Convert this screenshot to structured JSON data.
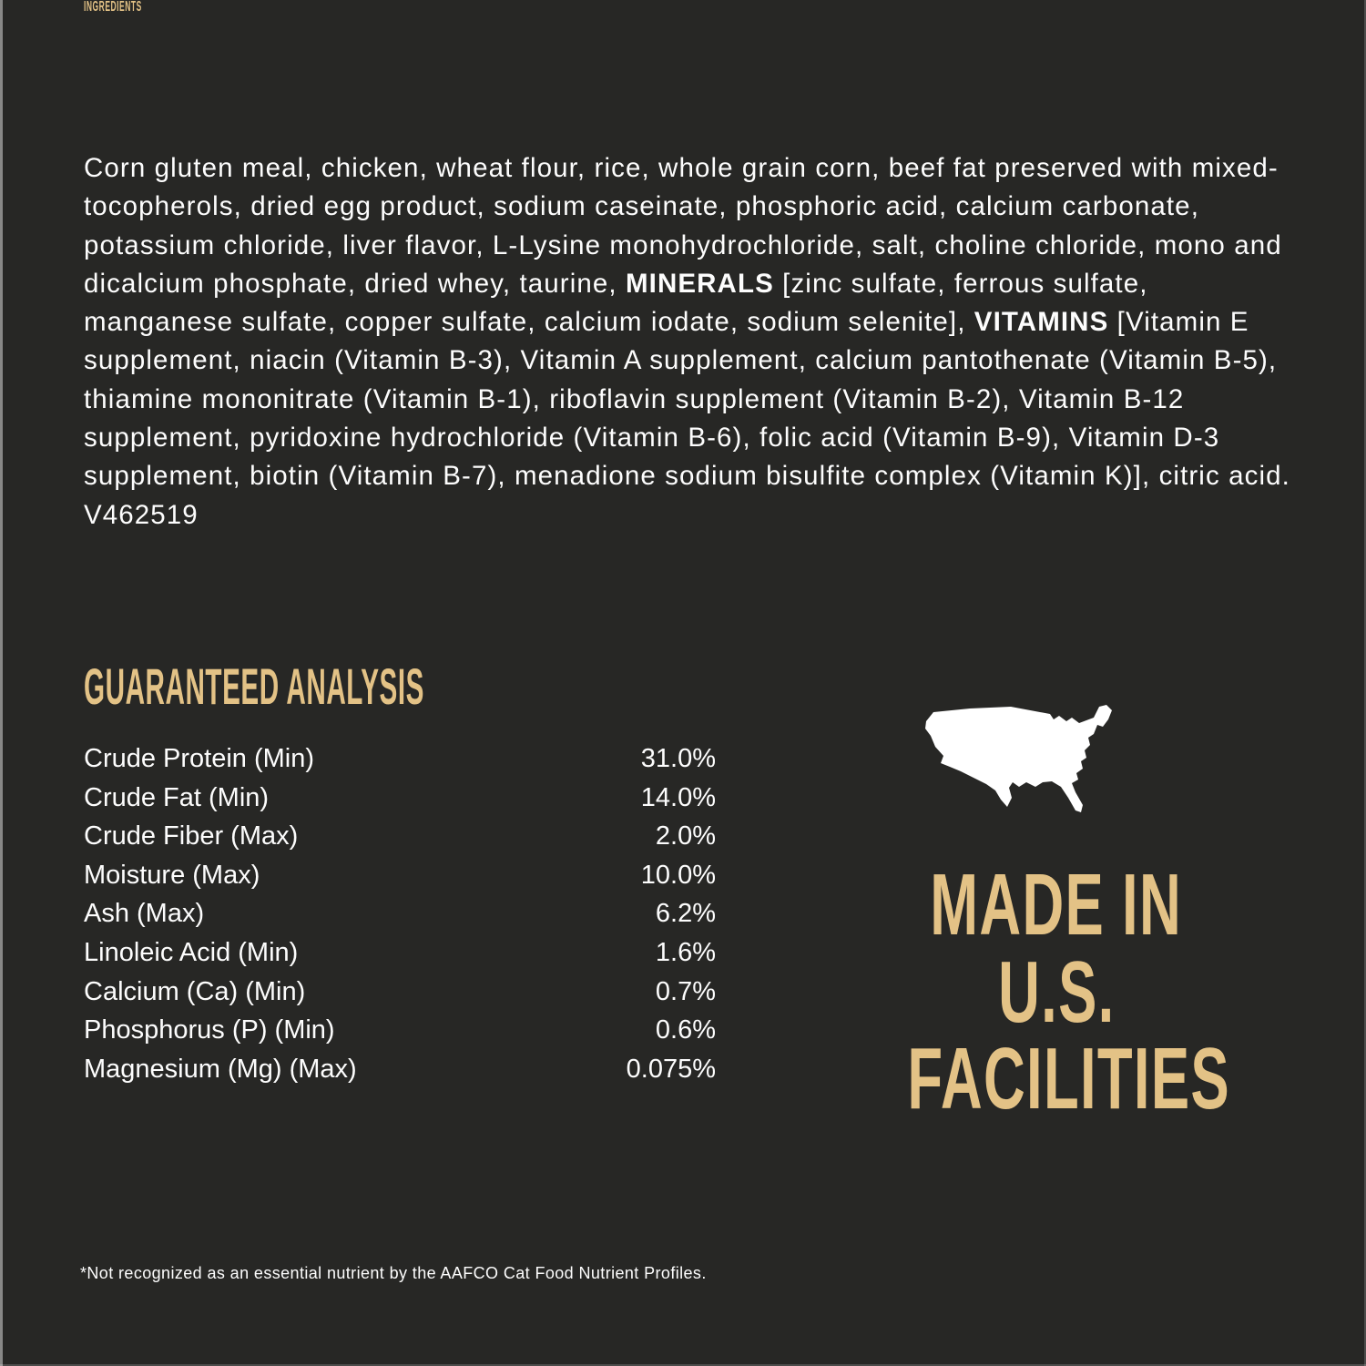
{
  "label": {
    "background_color": "#272725",
    "accent_color": "#e3c286",
    "text_color": "#fdfdfd"
  },
  "ingredients": {
    "title": "INGREDIENTS",
    "segments": [
      {
        "text": "Corn gluten meal, chicken, wheat flour, rice, whole grain corn, beef fat preserved with mixed-tocopherols, dried egg product, sodium caseinate, phosphoric acid, calcium carbonate, potassium chloride, liver flavor, L-Lysine monohydrochloride, salt, choline chloride, mono and dicalcium phosphate, dried whey, taurine, ",
        "bold": false
      },
      {
        "text": "MINERALS",
        "bold": true
      },
      {
        "text": " [zinc sulfate, ferrous sulfate, manganese sulfate, copper sulfate, calcium iodate, sodium selenite], ",
        "bold": false
      },
      {
        "text": "VITAMINS",
        "bold": true
      },
      {
        "text": " [Vitamin E supplement, niacin (Vitamin B-3), Vitamin A supplement, calcium pantothenate (Vitamin B-5), thiamine mononitrate (Vitamin B-1), riboflavin supplement (Vitamin B-2), Vitamin B-12 supplement, pyridoxine hydrochloride (Vitamin B-6), folic acid (Vitamin B-9), Vitamin D-3 supplement, biotin (Vitamin B-7), menadione sodium bisulfite complex (Vitamin K)], citric acid. V462519",
        "bold": false
      }
    ]
  },
  "guaranteed_analysis": {
    "title": "GUARANTEED ANALYSIS",
    "rows": [
      {
        "label": "Crude Protein (Min)",
        "value": "31.0%"
      },
      {
        "label": "Crude Fat (Min)",
        "value": "14.0%"
      },
      {
        "label": "Crude Fiber (Max)",
        "value": "2.0%"
      },
      {
        "label": "Moisture (Max)",
        "value": "10.0%"
      },
      {
        "label": "Ash (Max)",
        "value": "6.2%"
      },
      {
        "label": "Linoleic Acid (Min)",
        "value": "1.6%"
      },
      {
        "label": "Calcium (Ca) (Min)",
        "value": "0.7%"
      },
      {
        "label": "Phosphorus (P) (Min)",
        "value": "0.6%"
      },
      {
        "label": "Magnesium (Mg) (Max)",
        "value": "0.075%"
      }
    ]
  },
  "made_in": {
    "lines": [
      "MADE IN",
      "U.S.",
      "FACILITIES"
    ],
    "map_icon": "usa-map-silhouette",
    "map_color": "#ffffff"
  },
  "footnote": "*Not recognized as an essential nutrient by the AAFCO Cat Food Nutrient Profiles."
}
